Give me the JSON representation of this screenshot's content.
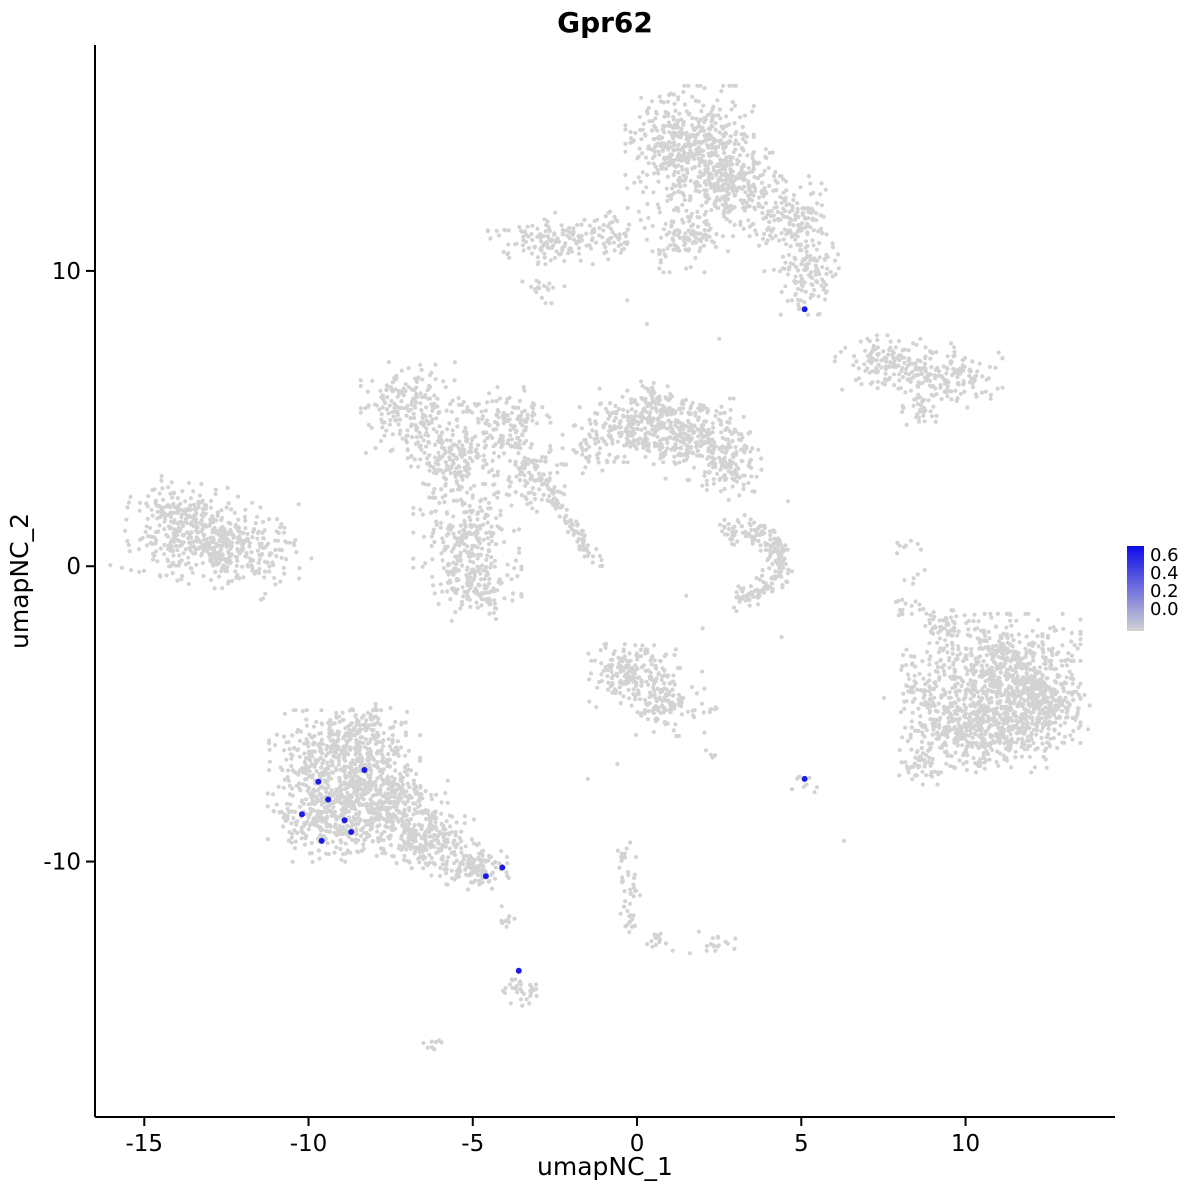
{
  "chart_data": {
    "type": "scatter",
    "title": "Gpr62",
    "xlabel": "umapNC_1",
    "ylabel": "umapNC_2",
    "xlim": [
      -16.5,
      14.55
    ],
    "ylim": [
      -18.65,
      17.65
    ],
    "x_ticks": [
      -15,
      -10,
      -5,
      0,
      5,
      10
    ],
    "y_ticks": [
      10,
      0,
      -10
    ],
    "grid": false,
    "background": "#FFFFFF",
    "point_color_low": "#D3D3D3",
    "point_color_high": "#0D0DE8",
    "legend": {
      "position": "right",
      "values": [
        0.6,
        0.4,
        0.2,
        0.0
      ],
      "vmax": 0.65
    },
    "clusters": [
      {
        "id": "top-main",
        "cx": 1.6,
        "cy": 14.2,
        "sx": 0.85,
        "sy": 0.9,
        "n": 520
      },
      {
        "id": "top-right-lobe",
        "cx": 3.0,
        "cy": 12.9,
        "sx": 0.7,
        "sy": 0.75,
        "n": 240
      },
      {
        "id": "top-arm",
        "cx": 4.7,
        "cy": 11.6,
        "sx": 0.55,
        "sy": 0.7,
        "n": 170
      },
      {
        "id": "top-hook",
        "cx": 5.2,
        "cy": 9.9,
        "sx": 0.45,
        "sy": 0.6,
        "n": 110
      },
      {
        "id": "top-lower",
        "cx": 1.5,
        "cy": 11.1,
        "sx": 0.55,
        "sy": 0.5,
        "n": 110
      },
      {
        "id": "top-left-notch",
        "cx": -0.7,
        "cy": 11.2,
        "sx": 0.5,
        "sy": 0.35,
        "n": 60
      },
      {
        "id": "upper-left-small",
        "cx": -2.7,
        "cy": 11.1,
        "sx": 0.8,
        "sy": 0.38,
        "n": 130
      },
      {
        "id": "upper-left-dot",
        "cx": -2.8,
        "cy": 9.4,
        "sx": 0.3,
        "sy": 0.22,
        "n": 18
      },
      {
        "id": "right-mid-west",
        "cx": 7.4,
        "cy": 6.9,
        "sx": 0.6,
        "sy": 0.4,
        "n": 110
      },
      {
        "id": "right-mid-east",
        "cx": 9.4,
        "cy": 6.4,
        "sx": 0.75,
        "sy": 0.5,
        "n": 170
      },
      {
        "id": "right-mid-tail",
        "cx": 8.6,
        "cy": 5.3,
        "sx": 0.35,
        "sy": 0.25,
        "n": 25
      },
      {
        "id": "far-left-a",
        "cx": -13.7,
        "cy": 1.2,
        "sx": 0.85,
        "sy": 0.75,
        "n": 380,
        "rot": -15
      },
      {
        "id": "far-left-b",
        "cx": -12.2,
        "cy": 0.5,
        "sx": 0.8,
        "sy": 0.6,
        "n": 200,
        "rot": -15
      },
      {
        "id": "far-left-fringe",
        "cx": -10.9,
        "cy": 0.4,
        "sx": 0.45,
        "sy": 0.4,
        "n": 30
      },
      {
        "id": "midleft-upper",
        "cx": -6.8,
        "cy": 5.3,
        "sx": 0.7,
        "sy": 0.7,
        "n": 210
      },
      {
        "id": "midleft-mid",
        "cx": -5.6,
        "cy": 3.6,
        "sx": 0.6,
        "sy": 0.6,
        "n": 170
      },
      {
        "id": "midleft-core",
        "cx": -5.2,
        "cy": 1.2,
        "sx": 0.7,
        "sy": 0.85,
        "n": 210
      },
      {
        "id": "midleft-low",
        "cx": -4.9,
        "cy": -0.7,
        "sx": 0.6,
        "sy": 0.5,
        "n": 140
      },
      {
        "id": "midleft-east-lobe",
        "cx": -3.9,
        "cy": 4.8,
        "sx": 0.55,
        "sy": 0.55,
        "n": 140
      },
      {
        "id": "midleft-east-low",
        "cx": -3.2,
        "cy": 3.0,
        "sx": 0.5,
        "sy": 0.5,
        "n": 110
      },
      {
        "id": "central-a",
        "cx": 0.3,
        "cy": 4.9,
        "sx": 0.8,
        "sy": 0.6,
        "n": 280
      },
      {
        "id": "central-b",
        "cx": 1.9,
        "cy": 4.3,
        "sx": 0.7,
        "sy": 0.6,
        "n": 230
      },
      {
        "id": "central-tip",
        "cx": 2.9,
        "cy": 3.4,
        "sx": 0.4,
        "sy": 0.5,
        "n": 90
      },
      {
        "id": "central-west",
        "cx": -1.0,
        "cy": 4.3,
        "sx": 0.55,
        "sy": 0.5,
        "n": 80
      },
      {
        "type": "streak",
        "id": "diag-streak",
        "x1": -2.7,
        "y1": 2.5,
        "x2": -1.2,
        "y2": 0.1,
        "w": 0.13,
        "n": 80
      },
      {
        "type": "arc",
        "id": "horseshoe",
        "cx": 3.2,
        "cy": 0.1,
        "r": 1.15,
        "a1": -100,
        "a2": 120,
        "w": 0.42,
        "n": 210
      },
      {
        "id": "center-low-a",
        "cx": -0.2,
        "cy": -3.6,
        "sx": 0.6,
        "sy": 0.6,
        "n": 190
      },
      {
        "id": "center-low-b",
        "cx": 0.9,
        "cy": -4.6,
        "sx": 0.5,
        "sy": 0.5,
        "n": 110
      },
      {
        "id": "center-low-dot",
        "cx": 2.3,
        "cy": -4.9,
        "sx": 0.18,
        "sy": 0.15,
        "n": 7
      },
      {
        "id": "bottomleft-top",
        "cx": -8.3,
        "cy": -5.5,
        "sx": 0.55,
        "sy": 0.4,
        "n": 90
      },
      {
        "id": "bottomleft-a",
        "cx": -8.9,
        "cy": -6.6,
        "sx": 1.0,
        "sy": 0.75,
        "n": 480
      },
      {
        "id": "bottomleft-b",
        "cx": -9.4,
        "cy": -8.4,
        "sx": 0.8,
        "sy": 0.7,
        "n": 330
      },
      {
        "id": "bottomleft-c",
        "cx": -7.6,
        "cy": -8.2,
        "sx": 0.8,
        "sy": 0.7,
        "n": 330
      },
      {
        "id": "bottomleft-tail",
        "cx": -6.3,
        "cy": -9.3,
        "sx": 0.7,
        "sy": 0.5,
        "n": 190,
        "rot": -20
      },
      {
        "id": "bottomleft-tip",
        "cx": -5.0,
        "cy": -10.2,
        "sx": 0.5,
        "sy": 0.33,
        "n": 110,
        "rot": -15
      },
      {
        "type": "streak",
        "id": "below-center-streak",
        "x1": -0.4,
        "y1": -9.6,
        "x2": -0.2,
        "y2": -12.4,
        "w": 0.16,
        "n": 45
      },
      {
        "id": "small-blob-a",
        "cx": 0.6,
        "cy": -12.6,
        "sx": 0.22,
        "sy": 0.2,
        "n": 14
      },
      {
        "id": "small-blob-b",
        "cx": 2.3,
        "cy": -12.8,
        "sx": 0.3,
        "sy": 0.22,
        "n": 18
      },
      {
        "id": "small-blob-c",
        "cx": -3.8,
        "cy": -11.8,
        "sx": 0.2,
        "sy": 0.2,
        "n": 9
      },
      {
        "id": "small-blob-d",
        "cx": -3.6,
        "cy": -14.4,
        "sx": 0.28,
        "sy": 0.3,
        "n": 32
      },
      {
        "id": "small-blob-e",
        "cx": -6.1,
        "cy": -16.2,
        "sx": 0.22,
        "sy": 0.12,
        "n": 8
      },
      {
        "id": "right-small-a",
        "cx": 5.1,
        "cy": -7.5,
        "sx": 0.18,
        "sy": 0.22,
        "n": 8
      },
      {
        "id": "right-small-b",
        "cx": 2.3,
        "cy": -6.3,
        "sx": 0.15,
        "sy": 0.12,
        "n": 4
      },
      {
        "id": "bottomright-main",
        "cx": 11.2,
        "cy": -3.8,
        "sx": 1.0,
        "sy": 0.95,
        "n": 650
      },
      {
        "id": "bottomright-low",
        "cx": 10.4,
        "cy": -5.6,
        "sx": 0.9,
        "sy": 0.6,
        "n": 380
      },
      {
        "id": "bottomright-east",
        "cx": 12.4,
        "cy": -4.7,
        "sx": 0.6,
        "sy": 0.65,
        "n": 240
      },
      {
        "id": "bottomright-west",
        "cx": 8.9,
        "cy": -4.4,
        "sx": 0.6,
        "sy": 0.85,
        "n": 140
      },
      {
        "id": "bottomright-sw",
        "cx": 8.6,
        "cy": -6.7,
        "sx": 0.35,
        "sy": 0.3,
        "n": 45
      },
      {
        "id": "bottomright-top",
        "cx": 9.4,
        "cy": -1.9,
        "sx": 0.45,
        "sy": 0.3,
        "n": 55
      },
      {
        "id": "bottomright-topwest",
        "cx": 8.1,
        "cy": -1.3,
        "sx": 0.25,
        "sy": 0.2,
        "n": 12
      },
      {
        "id": "right-dots-a",
        "cx": 8.3,
        "cy": 0.7,
        "sx": 0.25,
        "sy": 0.2,
        "n": 8
      },
      {
        "id": "right-dots-b",
        "cx": 8.6,
        "cy": -0.4,
        "sx": 0.2,
        "sy": 0.15,
        "n": 5
      }
    ],
    "singles": [
      [
        -0.3,
        9.0
      ],
      [
        2.5,
        7.7
      ],
      [
        0.3,
        8.2
      ],
      [
        4.4,
        -2.4
      ],
      [
        2.0,
        -2.1
      ],
      [
        -1.5,
        -7.2
      ],
      [
        6.3,
        -9.3
      ],
      [
        -10.3,
        2.1
      ],
      [
        4.6,
        2.2
      ],
      [
        -7.5,
        3.9
      ],
      [
        -0.6,
        -6.7
      ],
      [
        1.5,
        -1.0
      ]
    ],
    "expressing_cells": [
      {
        "x": -9.7,
        "y": -7.3,
        "value": 0.6
      },
      {
        "x": -9.4,
        "y": -7.9,
        "value": 0.6
      },
      {
        "x": -8.3,
        "y": -6.9,
        "value": 0.6
      },
      {
        "x": -10.2,
        "y": -8.4,
        "value": 0.6
      },
      {
        "x": -8.9,
        "y": -8.6,
        "value": 0.6
      },
      {
        "x": -9.6,
        "y": -9.3,
        "value": 0.6
      },
      {
        "x": -8.7,
        "y": -9.0,
        "value": 0.6
      },
      {
        "x": -4.6,
        "y": -10.5,
        "value": 0.6
      },
      {
        "x": -4.1,
        "y": -10.2,
        "value": 0.6
      },
      {
        "x": -3.6,
        "y": -13.7,
        "value": 0.6
      },
      {
        "x": 5.1,
        "y": -7.2,
        "value": 0.6
      },
      {
        "x": 5.1,
        "y": 8.7,
        "value": 0.6
      }
    ]
  }
}
